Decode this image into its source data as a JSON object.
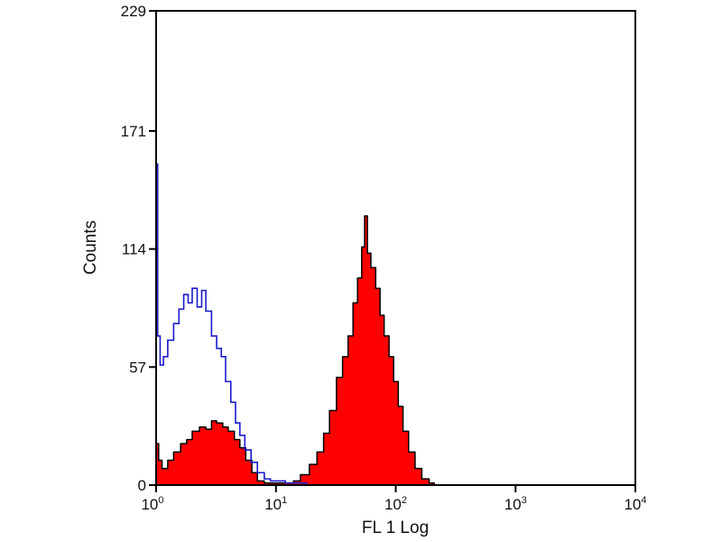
{
  "chart_data": {
    "type": "area",
    "title": "",
    "xlabel": "FL 1 Log",
    "ylabel": "Counts",
    "xscale": "log",
    "xlim": [
      1,
      10000
    ],
    "ylim": [
      0,
      229
    ],
    "grid": false,
    "x_ticks": [
      {
        "value": 1,
        "base": "10",
        "exp": "0"
      },
      {
        "value": 10,
        "base": "10",
        "exp": "1"
      },
      {
        "value": 100,
        "base": "10",
        "exp": "2"
      },
      {
        "value": 1000,
        "base": "10",
        "exp": "3"
      },
      {
        "value": 10000,
        "base": "10",
        "exp": "4"
      }
    ],
    "y_ticks": [
      {
        "value": 0,
        "label": "0"
      },
      {
        "value": 57,
        "label": "57"
      },
      {
        "value": 114,
        "label": "114"
      },
      {
        "value": 171,
        "label": "171"
      },
      {
        "value": 229,
        "label": "229"
      }
    ],
    "series": [
      {
        "style": "outline",
        "color": "#1a1acc",
        "points": [
          [
            1,
            155
          ],
          [
            1.03,
            72
          ],
          [
            1.08,
            58
          ],
          [
            1.15,
            62
          ],
          [
            1.25,
            70
          ],
          [
            1.4,
            78
          ],
          [
            1.55,
            85
          ],
          [
            1.7,
            92
          ],
          [
            1.85,
            88
          ],
          [
            2.0,
            95
          ],
          [
            2.2,
            86
          ],
          [
            2.4,
            94
          ],
          [
            2.6,
            84
          ],
          [
            2.9,
            72
          ],
          [
            3.2,
            66
          ],
          [
            3.5,
            62
          ],
          [
            3.8,
            50
          ],
          [
            4.2,
            40
          ],
          [
            4.6,
            30
          ],
          [
            5.0,
            24
          ],
          [
            5.5,
            17
          ],
          [
            6.2,
            11
          ],
          [
            7.0,
            6
          ],
          [
            8.0,
            3
          ],
          [
            9.0,
            2
          ],
          [
            10,
            2
          ],
          [
            12,
            1
          ],
          [
            15,
            1
          ],
          [
            18,
            0
          ]
        ]
      },
      {
        "style": "filled",
        "color": "#ff0000",
        "outline": "#000000",
        "points": [
          [
            1,
            20
          ],
          [
            1.05,
            12
          ],
          [
            1.12,
            8
          ],
          [
            1.25,
            12
          ],
          [
            1.4,
            16
          ],
          [
            1.6,
            20
          ],
          [
            1.8,
            22
          ],
          [
            2.0,
            26
          ],
          [
            2.3,
            28
          ],
          [
            2.6,
            27
          ],
          [
            2.9,
            31
          ],
          [
            3.2,
            30
          ],
          [
            3.6,
            28
          ],
          [
            4.0,
            26
          ],
          [
            4.5,
            22
          ],
          [
            5.0,
            18
          ],
          [
            5.6,
            12
          ],
          [
            6.3,
            6
          ],
          [
            7.0,
            2
          ],
          [
            8.0,
            1
          ],
          [
            10,
            1
          ],
          [
            12,
            1
          ],
          [
            14,
            2
          ],
          [
            16,
            5
          ],
          [
            19,
            10
          ],
          [
            22,
            16
          ],
          [
            25,
            25
          ],
          [
            28,
            36
          ],
          [
            32,
            52
          ],
          [
            36,
            62
          ],
          [
            40,
            72
          ],
          [
            44,
            88
          ],
          [
            48,
            100
          ],
          [
            52,
            115
          ],
          [
            55,
            130
          ],
          [
            58,
            112
          ],
          [
            62,
            105
          ],
          [
            68,
            95
          ],
          [
            74,
            82
          ],
          [
            80,
            72
          ],
          [
            88,
            62
          ],
          [
            96,
            50
          ],
          [
            105,
            38
          ],
          [
            115,
            26
          ],
          [
            128,
            16
          ],
          [
            145,
            8
          ],
          [
            165,
            3
          ],
          [
            190,
            1
          ],
          [
            210,
            0
          ]
        ]
      }
    ]
  }
}
